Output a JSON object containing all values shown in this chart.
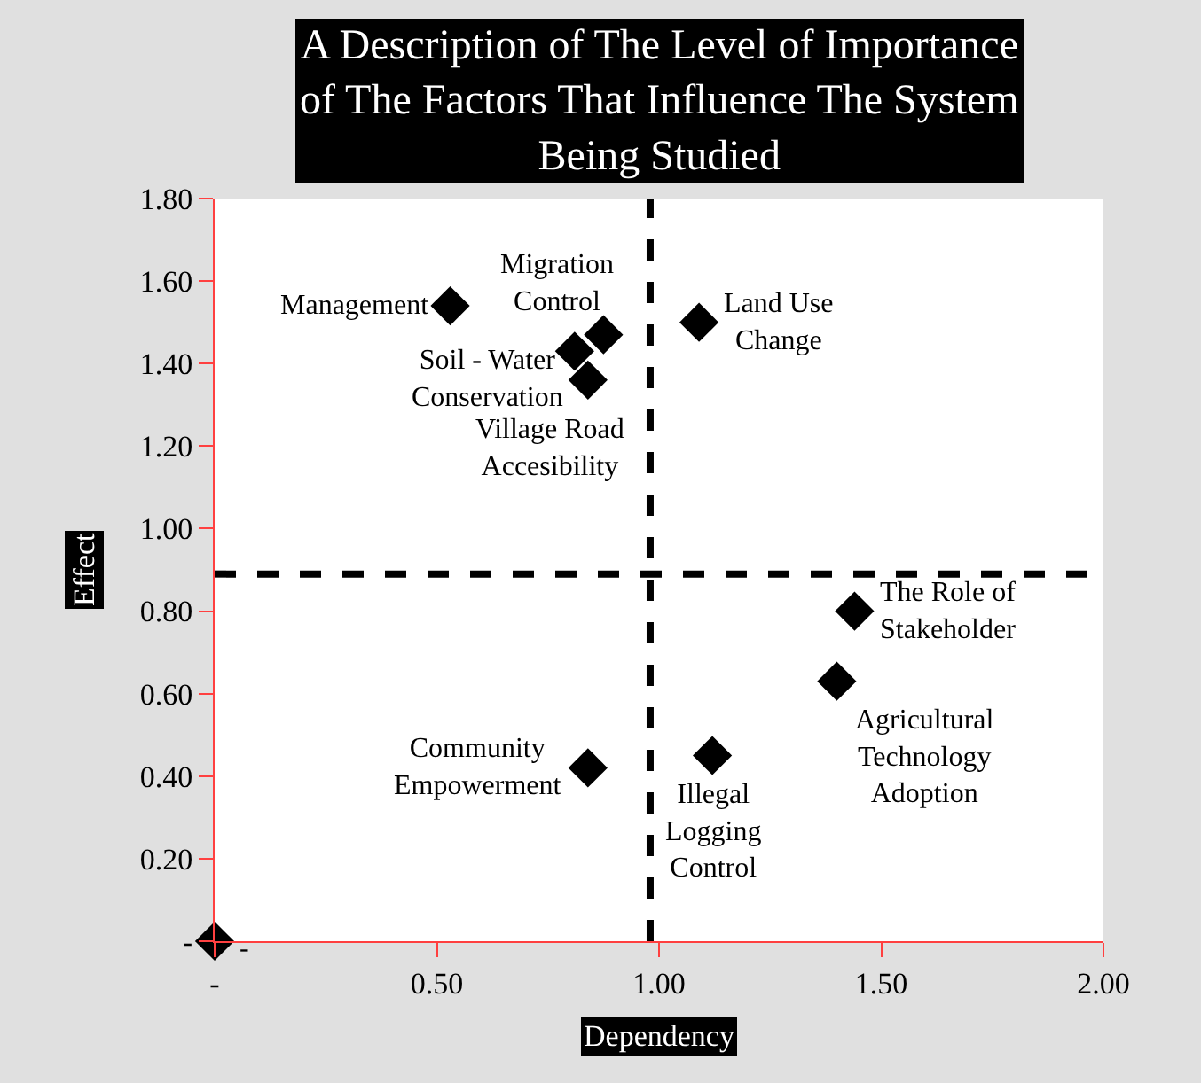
{
  "chart_data": {
    "type": "scatter",
    "title": "A Description of The Level of Importance of The Factors That Influence The System Being Studied",
    "xlabel": "Dependency",
    "ylabel": "Effect",
    "series": [
      {
        "color": "#000000",
        "x": [
          0.53,
          0.875,
          0.81,
          0.84,
          1.09,
          1.44,
          1.4,
          1.12,
          0.84,
          0.0
        ],
        "values": [
          1.54,
          1.47,
          1.43,
          1.36,
          1.5,
          0.8,
          0.63,
          0.45,
          0.42,
          0.0
        ]
      }
    ],
    "marker": "diamond",
    "annotations": [
      {
        "text": "Management",
        "x": 0.53,
        "y": 1.54
      },
      {
        "text": "Migration Control",
        "x": 0.875,
        "y": 1.47
      },
      {
        "text": "Village Road Accesibility",
        "x": 0.81,
        "y": 1.43
      },
      {
        "text": "Soil - Water Conservation",
        "x": 0.84,
        "y": 1.36
      },
      {
        "text": "Land Use Change",
        "x": 1.09,
        "y": 1.5
      },
      {
        "text": "The Role of Stakeholder",
        "x": 1.44,
        "y": 0.8
      },
      {
        "text": "Agricultural Technology Adoption",
        "x": 1.4,
        "y": 0.63
      },
      {
        "text": "Illegal Logging Control",
        "x": 1.12,
        "y": 0.45
      },
      {
        "text": "Community Empowerment",
        "x": 0.84,
        "y": 0.42
      },
      {
        "text": "-",
        "x": 0.0,
        "y": 0.0
      }
    ],
    "xlim": [
      0,
      2
    ],
    "ylim": [
      0,
      1.8
    ],
    "xticks": [
      {
        "value": 0,
        "label": "-"
      },
      {
        "value": 0.5,
        "label": "0.50"
      },
      {
        "value": 1,
        "label": "1.00"
      },
      {
        "value": 1.5,
        "label": "1.50"
      },
      {
        "value": 2,
        "label": "2.00"
      }
    ],
    "yticks": [
      {
        "value": 0,
        "label": "-"
      },
      {
        "value": 0.2,
        "label": "0.20"
      },
      {
        "value": 0.4,
        "label": "0.40"
      },
      {
        "value": 0.6,
        "label": "0.60"
      },
      {
        "value": 0.8,
        "label": "0.80"
      },
      {
        "value": 1.0,
        "label": "1.00"
      },
      {
        "value": 1.2,
        "label": "1.20"
      },
      {
        "value": 1.4,
        "label": "1.40"
      },
      {
        "value": 1.6,
        "label": "1.60"
      },
      {
        "value": 1.8,
        "label": "1.80"
      }
    ],
    "ref_lines": [
      {
        "axis": "x",
        "value": 0.98,
        "color": "#000000",
        "line_style": "dashed"
      },
      {
        "axis": "y",
        "value": 0.89,
        "color": "#000000",
        "line_style": "dashed"
      }
    ]
  }
}
